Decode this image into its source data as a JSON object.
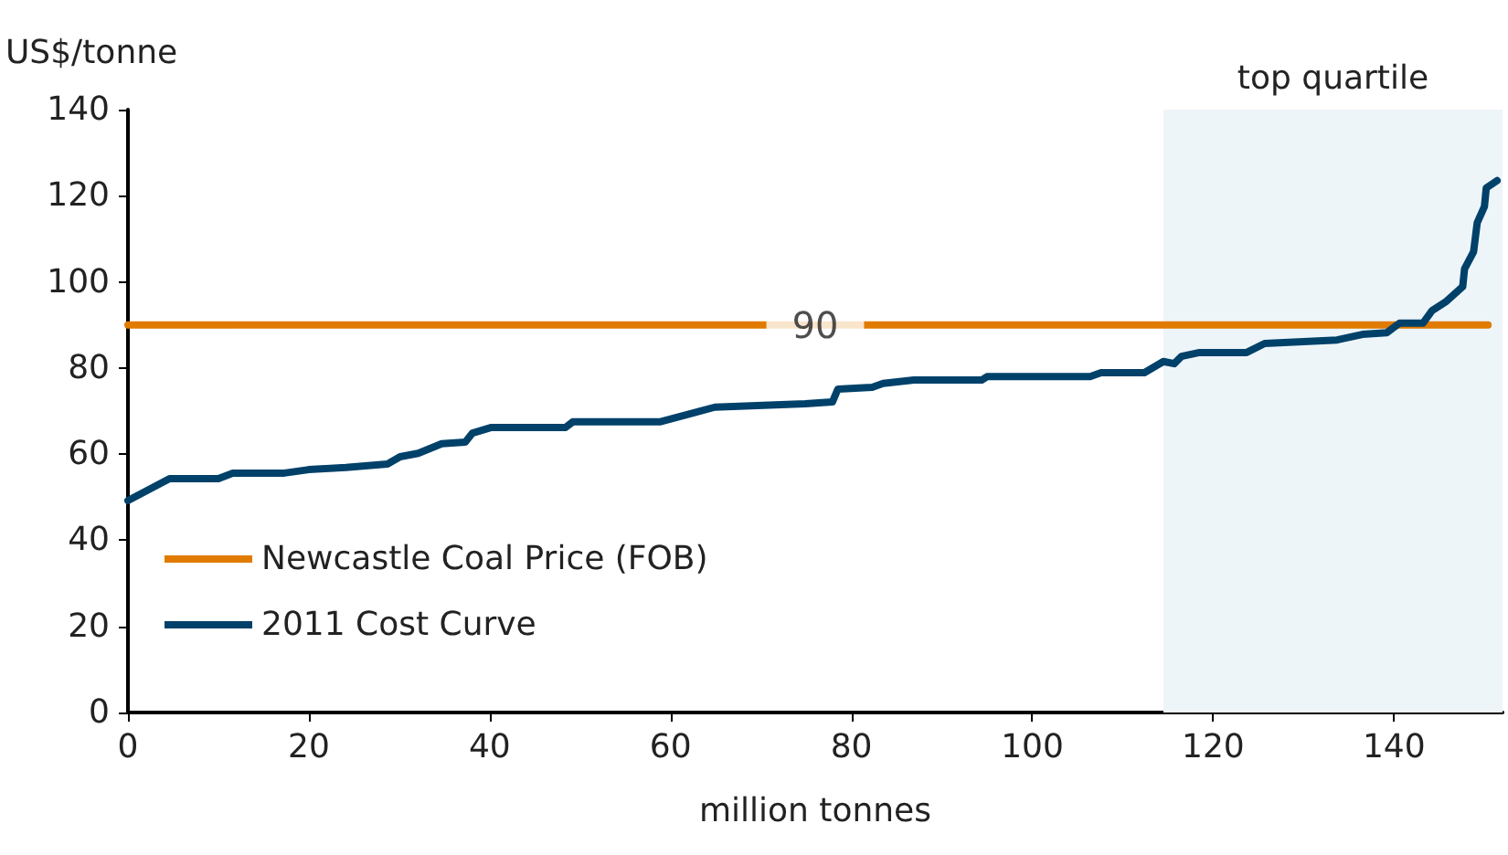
{
  "chart_data": {
    "type": "line",
    "ylabel": "US$/tonne",
    "xlabel": "million tonnes",
    "xlim": [
      0,
      152
    ],
    "xticks": [
      0,
      20,
      40,
      60,
      80,
      100,
      120,
      140
    ],
    "ylim": [
      0,
      140
    ],
    "yticks": [
      0,
      20,
      40,
      60,
      80,
      100,
      120,
      140
    ],
    "grid": false,
    "legend": "left",
    "line_style": "solid",
    "annotations": [
      {
        "text": "90",
        "x": 76,
        "y": 90
      }
    ],
    "bands": [
      {
        "axis": "x",
        "from": 114.5,
        "to": 152,
        "label": "top quartile",
        "color": "#eef5f9"
      }
    ],
    "series": [
      {
        "name": "Newcastle Coal Price (FOB)",
        "color": "#e07b00",
        "x": [
          0,
          150.4
        ],
        "values": [
          90,
          90
        ]
      },
      {
        "name": "2011 Cost Curve",
        "color": "#00416a",
        "x": [
          0,
          4.6,
          10,
          11.6,
          17.3,
          20,
          24.1,
          28.7,
          30.1,
          32.1,
          34.7,
          37.3,
          38.1,
          40.2,
          48.4,
          49.2,
          58.8,
          64.9,
          74.9,
          77.9,
          78.5,
          82.3,
          83.5,
          86.9,
          94.4,
          95,
          106.4,
          107.6,
          112.4,
          114.5,
          115.7,
          116.5,
          118.5,
          123.7,
          125.7,
          133.7,
          136.5,
          139.2,
          140.6,
          143.2,
          144.2,
          145.8,
          147.6,
          147.8,
          148.8,
          149.2,
          150,
          150.2,
          151.4
        ],
        "values": [
          49.2,
          54.3,
          54.3,
          55.6,
          55.6,
          56.4,
          56.9,
          57.7,
          59.4,
          60.2,
          62.4,
          62.8,
          64.9,
          66.2,
          66.2,
          67.5,
          67.5,
          70.9,
          71.7,
          72.1,
          75.1,
          75.5,
          76.4,
          77.2,
          77.2,
          78,
          78,
          78.9,
          78.9,
          81.5,
          81,
          82.7,
          83.6,
          83.6,
          85.7,
          86.5,
          87.8,
          88.2,
          90.4,
          90.4,
          93.3,
          95.5,
          98.9,
          103,
          107,
          113.7,
          117.5,
          121.8,
          123.5
        ]
      }
    ]
  }
}
